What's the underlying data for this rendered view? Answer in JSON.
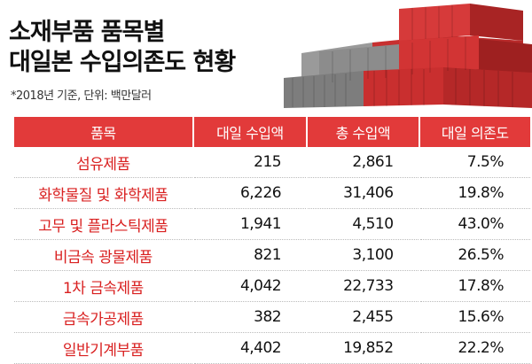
{
  "title": {
    "line1": "소재부품 품목별",
    "line2": "대일본 수입의존도 현황"
  },
  "note": "*2018년 기준, 단위: 백만달러",
  "colors": {
    "header_bg": "#e23a3a",
    "item_text": "#d92020",
    "container_red": "#d62f2f",
    "container_gray": "#8c8c8c"
  },
  "table": {
    "headers": [
      "품목",
      "대일 수입액",
      "총 수입액",
      "대일 의존도"
    ],
    "rows": [
      {
        "item": "섬유제품",
        "japan_import": "215",
        "total_import": "2,861",
        "dependency": "7.5%"
      },
      {
        "item": "화학물질 및 화학제품",
        "japan_import": "6,226",
        "total_import": "31,406",
        "dependency": "19.8%"
      },
      {
        "item": "고무 및 플라스틱제품",
        "japan_import": "1,941",
        "total_import": "4,510",
        "dependency": "43.0%"
      },
      {
        "item": "비금속 광물제품",
        "japan_import": "821",
        "total_import": "3,100",
        "dependency": "26.5%"
      },
      {
        "item": "1차 금속제품",
        "japan_import": "4,042",
        "total_import": "22,733",
        "dependency": "17.8%"
      },
      {
        "item": "금속가공제품",
        "japan_import": "382",
        "total_import": "2,455",
        "dependency": "15.6%"
      },
      {
        "item": "일반기계부품",
        "japan_import": "4,402",
        "total_import": "19,852",
        "dependency": "22.2%"
      }
    ]
  }
}
